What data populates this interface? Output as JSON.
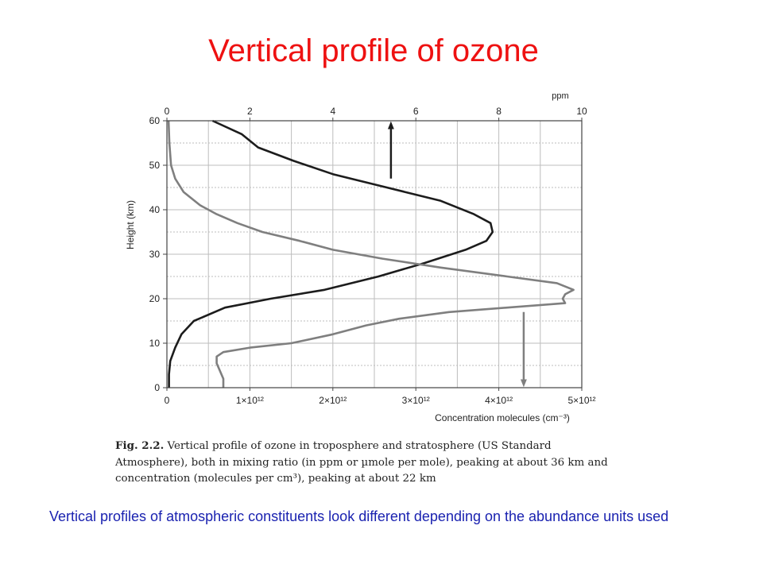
{
  "slide": {
    "title": "Vertical profile of ozone",
    "note": "Vertical profiles of atmospheric constituents look different depending on the abundance units used"
  },
  "caption": {
    "label": "Fig. 2.2.",
    "text": "Vertical profile of ozone in troposphere and stratosphere (US Standard Atmosphere), both in mixing ratio (in ppm or µmole per mole), peaking at about 36 km and concentration (molecules per cm³), peaking at about 22 km"
  },
  "colors": {
    "title": "#ee1111",
    "note": "#1a22b0",
    "mixing_ratio_line": "#1c1c1c",
    "concentration_line": "#7f7f7f",
    "grid": "#bdbdbd"
  },
  "chart_data": {
    "type": "line",
    "ylabel": "Height (km)",
    "ylim": [
      0,
      60
    ],
    "yticks": [
      "0",
      "10",
      "20",
      "30",
      "40",
      "50",
      "60"
    ],
    "top_axis": {
      "label": "ppm",
      "lim": [
        0,
        10
      ],
      "ticks": [
        "0",
        "2",
        "4",
        "6",
        "8",
        "10"
      ]
    },
    "bottom_axis": {
      "label": "Concentration molecules (cm⁻³)",
      "lim": [
        0,
        5000000000000.0
      ],
      "ticks": [
        "0",
        "1×10¹²",
        "2×10¹²",
        "3×10¹²",
        "4×10¹²",
        "5×10¹²"
      ]
    },
    "grid": true,
    "series": [
      {
        "axis": "top",
        "points": [
          [
            0.05,
            0
          ],
          [
            0.05,
            3
          ],
          [
            0.08,
            6
          ],
          [
            0.2,
            9
          ],
          [
            0.35,
            12
          ],
          [
            0.65,
            15
          ],
          [
            1.4,
            18
          ],
          [
            2.5,
            20
          ],
          [
            3.8,
            22
          ],
          [
            5.1,
            25
          ],
          [
            6.2,
            28
          ],
          [
            7.2,
            31
          ],
          [
            7.7,
            33
          ],
          [
            7.85,
            35
          ],
          [
            7.8,
            37
          ],
          [
            7.4,
            39
          ],
          [
            6.6,
            42
          ],
          [
            5.3,
            45
          ],
          [
            4.0,
            48
          ],
          [
            3.05,
            51
          ],
          [
            2.2,
            54
          ],
          [
            1.8,
            57
          ],
          [
            1.1,
            60
          ]
        ],
        "arrow": {
          "x": 5.4,
          "from_y": 47,
          "to_y": 59
        }
      },
      {
        "axis": "bottom",
        "points": [
          [
            680000000000.0,
            0
          ],
          [
            680000000000.0,
            2
          ],
          [
            600000000000.0,
            5.5
          ],
          [
            600000000000.0,
            7
          ],
          [
            680000000000.0,
            8
          ],
          [
            1000000000000.0,
            9
          ],
          [
            1500000000000.0,
            10
          ],
          [
            2000000000000.0,
            12
          ],
          [
            2400000000000.0,
            14
          ],
          [
            2800000000000.0,
            15.5
          ],
          [
            3400000000000.0,
            17
          ],
          [
            4100000000000.0,
            18
          ],
          [
            4800000000000.0,
            19
          ],
          [
            4770000000000.0,
            20
          ],
          [
            4800000000000.0,
            21
          ],
          [
            4900000000000.0,
            22
          ],
          [
            4700000000000.0,
            23.5
          ],
          [
            4100000000000.0,
            25
          ],
          [
            3300000000000.0,
            27
          ],
          [
            2600000000000.0,
            29
          ],
          [
            2000000000000.0,
            31
          ],
          [
            1600000000000.0,
            33
          ],
          [
            1150000000000.0,
            35
          ],
          [
            850000000000.0,
            37
          ],
          [
            600000000000.0,
            39
          ],
          [
            400000000000.0,
            41
          ],
          [
            200000000000.0,
            44
          ],
          [
            100000000000.0,
            47
          ],
          [
            50000000000.0,
            50
          ],
          [
            30000000000.0,
            55
          ],
          [
            20000000000.0,
            60
          ]
        ],
        "arrow": {
          "x": 4300000000000.0,
          "from_y": 17,
          "to_y": 1
        }
      }
    ]
  }
}
